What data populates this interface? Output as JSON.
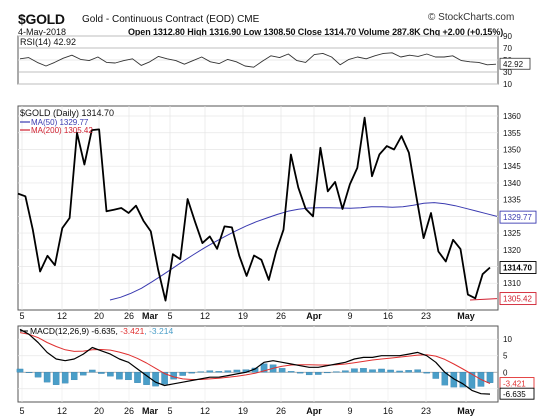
{
  "header": {
    "ticker": "$GOLD",
    "contract": "Gold - Continuous Contract (EOD)",
    "exchange": "CME",
    "source": "© StockCharts.com",
    "date": "4-May-2018",
    "ohlc": "Open 1312.80 High 1316.90 Low 1308.50 Close 1314.70 Volume 287.8K Chg +2.00 (+0.15%)"
  },
  "colors": {
    "price": "#000000",
    "ma50": "#3a3ab0",
    "ma200": "#d02030",
    "macd_signal": "#e03030",
    "histogram": "#4a9ec8",
    "rsi": "#333333"
  },
  "chart_data": [
    {
      "type": "line",
      "title": "RSI(14) 42.92",
      "ylim": [
        10,
        90
      ],
      "ticks": [
        10,
        30,
        50,
        70,
        90
      ],
      "last_value_label": "42.92",
      "series": [
        {
          "values": [
            52,
            54,
            46,
            40,
            46,
            53,
            58,
            51,
            49,
            55,
            46,
            45,
            49,
            52,
            41,
            47,
            56,
            52,
            49,
            43,
            49,
            55,
            47,
            44,
            51,
            47,
            40,
            38,
            48,
            57,
            54,
            60,
            49,
            46,
            59,
            61,
            55,
            42,
            51,
            55,
            52,
            57,
            61,
            62,
            55,
            58,
            56,
            60,
            55,
            55,
            57,
            49,
            47,
            46,
            42,
            43
          ]
        }
      ]
    },
    {
      "type": "line",
      "title": "$GOLD (Daily) 1314.70",
      "ylim": [
        1302,
        1363
      ],
      "yticks": [
        1310,
        1315,
        1320,
        1325,
        1330,
        1335,
        1340,
        1345,
        1350,
        1355,
        1360
      ],
      "xtick_labels": [
        "5",
        "12",
        "20",
        "26",
        "Mar",
        "5",
        "12",
        "19",
        "26",
        "Apr",
        "9",
        "16",
        "23",
        "May"
      ],
      "price_label": "1314.70",
      "ma50_label": "1329.77",
      "ma200_label": "1305.42",
      "series": [
        {
          "name": "$GOLD (Daily) 1314.70",
          "values": [
            1336.8,
            1336,
            1326,
            1313.5,
            1318.2,
            1315.4,
            1326.5,
            1329.5,
            1355,
            1345.5,
            1355.8,
            1356,
            1331.5,
            1332,
            1332.5,
            1331,
            1333.2,
            1328.7,
            1325.5,
            1314.1,
            1304.8,
            1318.7,
            1317.2,
            1335.2,
            1328.4,
            1322,
            1324,
            1320.3,
            1327,
            1326.7,
            1318.2,
            1312.2,
            1318.3,
            1317,
            1311,
            1319.5,
            1326,
            1348.5,
            1338.6,
            1332.3,
            1330,
            1350.5,
            1337.5,
            1340.3,
            1332.2,
            1339.6,
            1344.5,
            1359.5,
            1342,
            1348.5,
            1351,
            1350,
            1354,
            1349,
            1336,
            1323.5,
            1331,
            1319.5,
            1316.5,
            1323,
            1320.2,
            1306.6,
            1305.5,
            1312.7,
            1314.7
          ]
        },
        {
          "name": "MA(50) 1329.77",
          "values": [
            1305,
            1305.8,
            1307,
            1308.5,
            1310.4,
            1312.4,
            1314.5,
            1316.6,
            1318.6,
            1320.5,
            1322.3,
            1324,
            1325.6,
            1327.1,
            1328.4,
            1329.5,
            1330.6,
            1331.5,
            1332.1,
            1332.5,
            1332.6,
            1332.6,
            1332.5,
            1332.4,
            1332.6,
            1332.9,
            1332.9,
            1332.7,
            1332.9,
            1333.3,
            1333.9,
            1334.1,
            1333.8,
            1333.2,
            1332.4,
            1331.6,
            1330.8,
            1330
          ]
        },
        {
          "name": "MA(200) 1305.42",
          "values": [
            1305,
            1305.4
          ]
        }
      ]
    },
    {
      "type": "line",
      "title": "MACD(12,26,9) -6.635, -3.421, -3.214",
      "ylim": [
        -9,
        14
      ],
      "yticks": [
        -5,
        0,
        5,
        10
      ],
      "macd_label": "-6.635",
      "signal_label": "-3.421",
      "series": [
        {
          "name": "MACD(12,26,9) -6.635",
          "values": [
            13,
            11.5,
            9,
            6,
            4,
            3.5,
            4,
            5.5,
            7.5,
            6.5,
            5.5,
            4,
            3,
            1,
            -1,
            -3,
            -4,
            -3.5,
            -3,
            -2.5,
            -2,
            -1.5,
            -1.5,
            -1,
            -0.5,
            0,
            1,
            3,
            3.5,
            3,
            2.5,
            2,
            1.5,
            1.5,
            2,
            2.5,
            3,
            4,
            4.5,
            4.5,
            5,
            5,
            5,
            5.5,
            6,
            5,
            3,
            0,
            -2,
            -3.5,
            -5.5,
            -6.5,
            -6.6
          ]
        },
        {
          "name": "-3.421",
          "values": [
            12,
            11.5,
            10.5,
            9,
            7.8,
            6.8,
            6.3,
            6.4,
            6.8,
            6.9,
            6.7,
            6.1,
            5.3,
            4.2,
            2.8,
            1.2,
            -0.4,
            -1.4,
            -2,
            -2.2,
            -2.2,
            -2,
            -1.8,
            -1.5,
            -1.2,
            -0.8,
            -0.3,
            0.4,
            1.2,
            1.8,
            2.2,
            2.3,
            2.3,
            2.2,
            2.2,
            2.3,
            2.5,
            2.9,
            3.3,
            3.7,
            4,
            4.3,
            4.6,
            4.9,
            5.2,
            5.3,
            4.9,
            3.9,
            2.5,
            1,
            -0.6,
            -2.2,
            -3.4
          ]
        },
        {
          "name": "-3.214",
          "values": [
            1,
            0,
            -1.5,
            -3,
            -3.8,
            -3.3,
            -2.3,
            -0.9,
            0.7,
            -0.4,
            -1.2,
            -2.1,
            -2.3,
            -3.2,
            -3.8,
            -4.2,
            -3.6,
            -2.1,
            -1,
            -0.3,
            0.2,
            0.5,
            0.3,
            0.5,
            0.7,
            0.8,
            1.3,
            2.6,
            2.3,
            1.2,
            0.3,
            -0.3,
            -0.8,
            -0.7,
            -0.2,
            0.2,
            0.5,
            1.1,
            1.2,
            0.8,
            1,
            0.7,
            0.4,
            0.6,
            0.8,
            -0.3,
            -1.9,
            -3.9,
            -4.5,
            -4.5,
            -4.9,
            -4.3,
            -3.2
          ]
        }
      ]
    }
  ]
}
